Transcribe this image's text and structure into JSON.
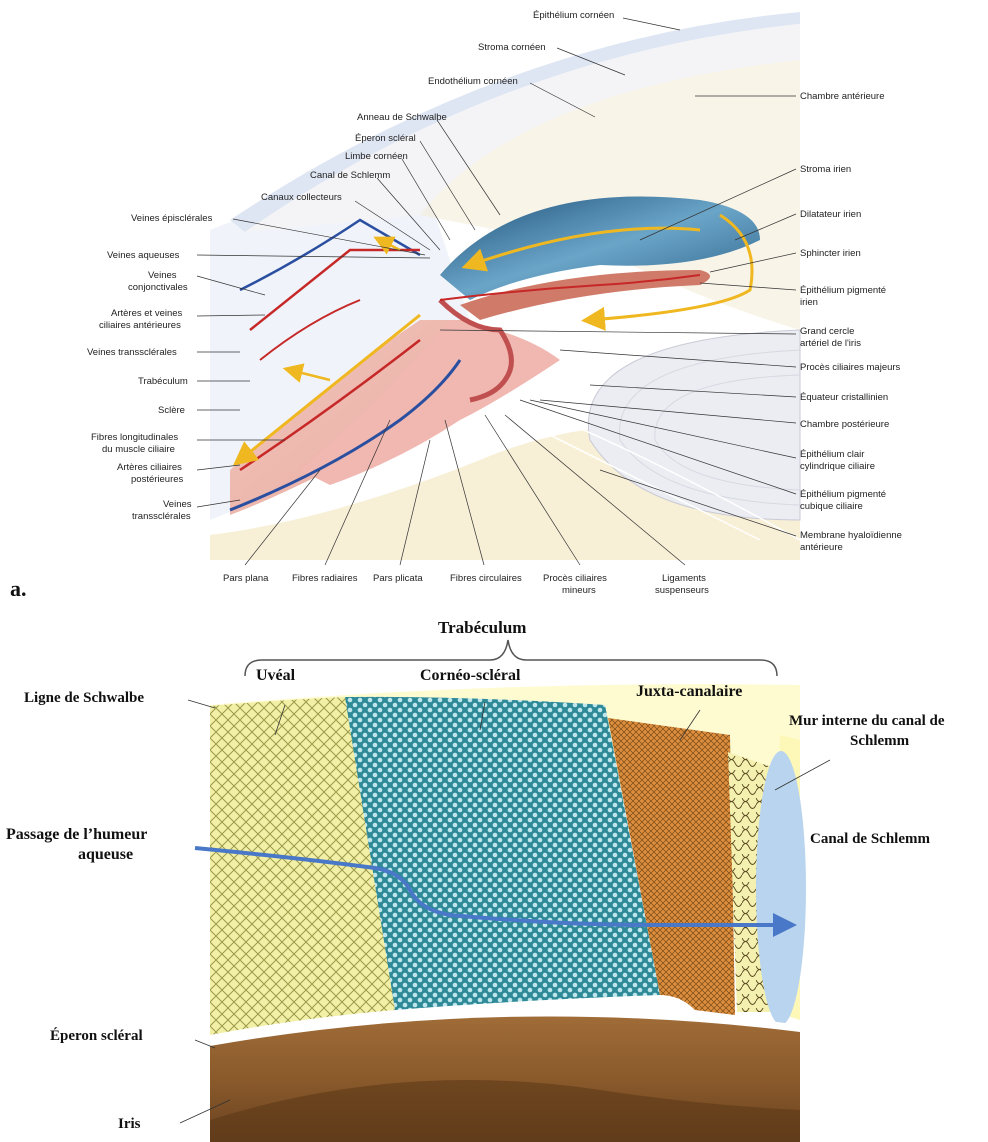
{
  "panel_a": {
    "letter": "a.",
    "labels": {
      "epithelium_corneen": "Épithélium cornéen",
      "stroma_corneen": "Stroma cornéen",
      "endothelium_corneen": "Endothélium cornéen",
      "chambre_anterieure": "Chambre antérieure",
      "anneau_schwalbe": "Anneau de Schwalbe",
      "eperon_scleral": "Éperon scléral",
      "limbe_corneen": "Limbe cornéen",
      "canal_schlemm": "Canal de Schlemm",
      "canaux_collecteurs": "Canaux collecteurs",
      "veines_episclerales": "Veines épisclérales",
      "veines_aqueuses": "Veines aqueuses",
      "veines_conj_1": "Veines",
      "veines_conj_2": "conjonctivales",
      "arteres_ant_1": "Artères et veines",
      "arteres_ant_2": "ciliaires antérieures",
      "veines_transscl": "Veines transsclérales",
      "trabeculum": "Trabéculum",
      "sclere": "Sclère",
      "fibres_long_1": "Fibres longitudinales",
      "fibres_long_2": "du muscle ciliaire",
      "arteres_post_1": "Artères ciliaires",
      "arteres_post_2": "postérieures",
      "veines_transscl2_1": "Veines",
      "veines_transscl2_2": "transsclérales",
      "stroma_irien": "Stroma irien",
      "dilatateur": "Dilatateur irien",
      "sphincter": "Sphincter irien",
      "epith_pigm_irien_1": "Épithélium pigmenté",
      "epith_pigm_irien_2": "irien",
      "grand_cercle_1": "Grand cercle",
      "grand_cercle_2": "artériel de l'iris",
      "proces_majeurs": "Procès ciliaires majeurs",
      "equateur": "Équateur cristallinien",
      "chambre_post": "Chambre postérieure",
      "epith_clair_1": "Épithélium clair",
      "epith_clair_2": "cylindrique ciliaire",
      "epith_cub_1": "Épithélium pigmenté",
      "epith_cub_2": "cubique ciliaire",
      "membrane_1": "Membrane hyaloïdienne",
      "membrane_2": "antérieure",
      "pars_plana": "Pars plana",
      "fibres_radiaires": "Fibres radiaires",
      "pars_plicata": "Pars plicata",
      "fibres_circulaires": "Fibres circulaires",
      "proces_mineurs_1": "Procès ciliaires",
      "proces_mineurs_2": "mineurs",
      "ligaments_1": "Ligaments",
      "ligaments_2": "suspenseurs"
    }
  },
  "panel_b": {
    "trabeculum": "Trabéculum",
    "uveal": "Uvéal",
    "corneo_scleral": "Cornéo-scléral",
    "juxta": "Juxta-canalaire",
    "ligne_schwalbe": "Ligne de Schwalbe",
    "mur_1": "Mur interne du canal de",
    "mur_2": "Schlemm",
    "passage_1": "Passage de l’humeur",
    "passage_2": "aqueuse",
    "canal_schlemm": "Canal de Schlemm",
    "eperon": "Éperon scléral",
    "iris": "Iris"
  },
  "colors": {
    "uveal": "#f3f0a0",
    "corneo": "#2e8f9e",
    "juxta": "#d9893a",
    "canal": "#b8d4ee",
    "iris": "#8a5a2b",
    "flow_arrow": "#4a78c8"
  }
}
